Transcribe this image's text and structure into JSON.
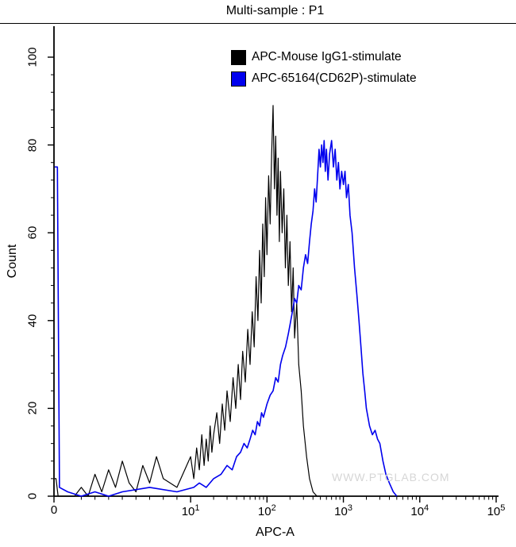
{
  "title": "Multi-sample : P1",
  "watermark": "WWW.PTGLAB.COM",
  "legend": [
    {
      "label": "APC-Mouse IgG1-stimulate",
      "color": "#000000"
    },
    {
      "label": "APC-65164(CD62P)-stimulate",
      "color": "#0000ee"
    }
  ],
  "axes": {
    "x": {
      "label": "APC-A",
      "scale": "logicle",
      "ticks": [
        {
          "text": "0",
          "value": 0
        },
        {
          "base": "10",
          "exp": "1",
          "value": 10
        },
        {
          "base": "10",
          "exp": "2",
          "value": 100
        },
        {
          "base": "10",
          "exp": "3",
          "value": 1000
        },
        {
          "base": "10",
          "exp": "4",
          "value": 10000
        },
        {
          "base": "10",
          "exp": "5",
          "value": 100000
        }
      ]
    },
    "y": {
      "label": "Count",
      "ticks": [
        0,
        20,
        40,
        60,
        80,
        100
      ],
      "max": 100
    }
  },
  "chart_data": {
    "type": "line",
    "subtype": "flow-cytometry-histogram",
    "title": "Multi-sample : P1",
    "xlabel": "APC-A",
    "ylabel": "Count",
    "x_scale": "logicle",
    "xlim": [
      0,
      100000
    ],
    "ylim": [
      0,
      100
    ],
    "legend_position": "top-right-inside",
    "grid": false,
    "series": [
      {
        "name": "APC-Mouse IgG1-stimulate",
        "color": "#000000",
        "width": 1.2,
        "points": [
          [
            0.05,
            4
          ],
          [
            0.15,
            4
          ],
          [
            0.3,
            0
          ],
          [
            1.5,
            0
          ],
          [
            2,
            2
          ],
          [
            2.5,
            0
          ],
          [
            3,
            5
          ],
          [
            3.5,
            1
          ],
          [
            4,
            6
          ],
          [
            4.5,
            2
          ],
          [
            5,
            8
          ],
          [
            5.5,
            3
          ],
          [
            6,
            1
          ],
          [
            6.5,
            7
          ],
          [
            7,
            3
          ],
          [
            7.5,
            9
          ],
          [
            8,
            4
          ],
          [
            9,
            2
          ],
          [
            10,
            9
          ],
          [
            11,
            4
          ],
          [
            12,
            11
          ],
          [
            13,
            6
          ],
          [
            14,
            14
          ],
          [
            15,
            7
          ],
          [
            16,
            13
          ],
          [
            17,
            8
          ],
          [
            18,
            16
          ],
          [
            19,
            10
          ],
          [
            20,
            14
          ],
          [
            22,
            19
          ],
          [
            24,
            12
          ],
          [
            26,
            21
          ],
          [
            28,
            15
          ],
          [
            30,
            24
          ],
          [
            33,
            17
          ],
          [
            36,
            27
          ],
          [
            39,
            20
          ],
          [
            42,
            30
          ],
          [
            45,
            22
          ],
          [
            48,
            33
          ],
          [
            52,
            26
          ],
          [
            56,
            38
          ],
          [
            60,
            30
          ],
          [
            64,
            42
          ],
          [
            68,
            34
          ],
          [
            72,
            50
          ],
          [
            76,
            40
          ],
          [
            80,
            56
          ],
          [
            84,
            44
          ],
          [
            88,
            62
          ],
          [
            92,
            50
          ],
          [
            96,
            68
          ],
          [
            100,
            55
          ],
          [
            105,
            73
          ],
          [
            110,
            62
          ],
          [
            115,
            78
          ],
          [
            120,
            89
          ],
          [
            125,
            70
          ],
          [
            130,
            82
          ],
          [
            135,
            64
          ],
          [
            140,
            77
          ],
          [
            145,
            58
          ],
          [
            150,
            74
          ],
          [
            158,
            60
          ],
          [
            166,
            70
          ],
          [
            174,
            52
          ],
          [
            182,
            64
          ],
          [
            190,
            48
          ],
          [
            200,
            58
          ],
          [
            210,
            42
          ],
          [
            220,
            52
          ],
          [
            230,
            36
          ],
          [
            245,
            44
          ],
          [
            260,
            30
          ],
          [
            280,
            24
          ],
          [
            300,
            16
          ],
          [
            330,
            9
          ],
          [
            360,
            4
          ],
          [
            400,
            1
          ],
          [
            450,
            0
          ]
        ]
      },
      {
        "name": "APC-65164(CD62P)-stimulate",
        "color": "#0000ee",
        "width": 1.6,
        "points": [
          [
            0.05,
            75
          ],
          [
            0.25,
            75
          ],
          [
            0.4,
            2
          ],
          [
            1,
            1
          ],
          [
            2,
            0
          ],
          [
            3,
            1
          ],
          [
            4,
            0
          ],
          [
            5,
            1
          ],
          [
            7,
            2
          ],
          [
            9,
            1
          ],
          [
            11,
            2
          ],
          [
            13,
            3
          ],
          [
            16,
            2
          ],
          [
            20,
            4
          ],
          [
            25,
            5
          ],
          [
            30,
            7
          ],
          [
            35,
            6
          ],
          [
            40,
            9
          ],
          [
            45,
            10
          ],
          [
            50,
            12
          ],
          [
            55,
            11
          ],
          [
            60,
            13
          ],
          [
            65,
            15
          ],
          [
            70,
            14
          ],
          [
            75,
            17
          ],
          [
            80,
            16
          ],
          [
            85,
            19
          ],
          [
            90,
            18
          ],
          [
            100,
            21
          ],
          [
            110,
            23
          ],
          [
            120,
            24
          ],
          [
            130,
            27
          ],
          [
            140,
            26
          ],
          [
            150,
            30
          ],
          [
            160,
            32
          ],
          [
            175,
            34
          ],
          [
            190,
            37
          ],
          [
            200,
            39
          ],
          [
            215,
            42
          ],
          [
            230,
            45
          ],
          [
            245,
            44
          ],
          [
            260,
            48
          ],
          [
            280,
            47
          ],
          [
            300,
            52
          ],
          [
            320,
            55
          ],
          [
            340,
            53
          ],
          [
            360,
            58
          ],
          [
            380,
            62
          ],
          [
            400,
            65
          ],
          [
            420,
            70
          ],
          [
            440,
            67
          ],
          [
            460,
            73
          ],
          [
            480,
            79
          ],
          [
            500,
            75
          ],
          [
            520,
            80
          ],
          [
            540,
            76
          ],
          [
            560,
            81
          ],
          [
            580,
            74
          ],
          [
            600,
            79
          ],
          [
            630,
            72
          ],
          [
            660,
            78
          ],
          [
            700,
            81
          ],
          [
            740,
            75
          ],
          [
            780,
            79
          ],
          [
            820,
            72
          ],
          [
            860,
            76
          ],
          [
            900,
            70
          ],
          [
            950,
            74
          ],
          [
            1000,
            71
          ],
          [
            1050,
            74
          ],
          [
            1100,
            68
          ],
          [
            1160,
            71
          ],
          [
            1220,
            64
          ],
          [
            1300,
            60
          ],
          [
            1400,
            52
          ],
          [
            1500,
            46
          ],
          [
            1600,
            40
          ],
          [
            1700,
            34
          ],
          [
            1800,
            28
          ],
          [
            1900,
            24
          ],
          [
            2000,
            20
          ],
          [
            2200,
            16
          ],
          [
            2400,
            14
          ],
          [
            2600,
            15
          ],
          [
            2800,
            13
          ],
          [
            3000,
            12
          ],
          [
            3300,
            8
          ],
          [
            3600,
            5
          ],
          [
            4000,
            3
          ],
          [
            4500,
            1
          ],
          [
            5000,
            0
          ]
        ]
      }
    ]
  }
}
